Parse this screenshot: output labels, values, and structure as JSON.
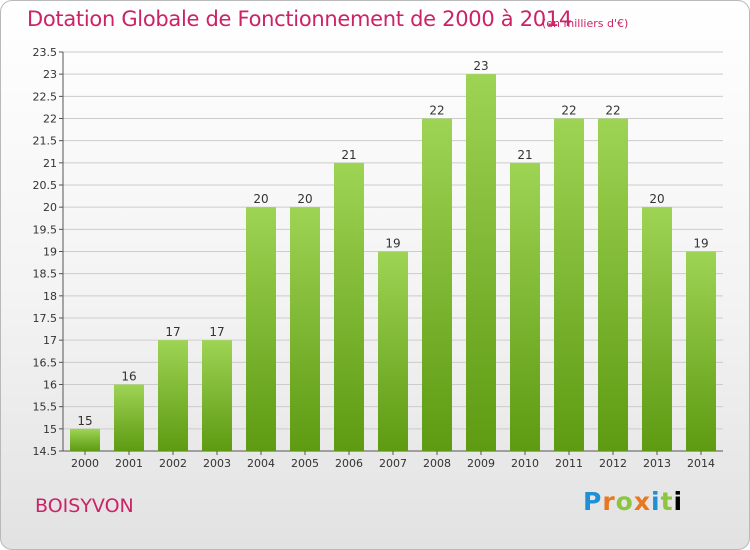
{
  "header": {
    "title": "Dotation Globale de Fonctionnement de 2000 à 2014",
    "unit_note": "(en milliers d'€)"
  },
  "footer": {
    "commune": "BOISYVON",
    "logo_text": "Proxiti"
  },
  "colors": {
    "accent": "#cc2266",
    "bar_top": "#9ed454",
    "bar_bottom": "#5e9a12",
    "grid": "#cccccc"
  },
  "chart_data": {
    "type": "bar",
    "title": "Dotation Globale de Fonctionnement de 2000 à 2014",
    "subtitle": "(en milliers d'€)",
    "xlabel": "",
    "ylabel": "",
    "categories": [
      "2000",
      "2001",
      "2002",
      "2003",
      "2004",
      "2005",
      "2006",
      "2007",
      "2008",
      "2009",
      "2010",
      "2011",
      "2012",
      "2013",
      "2014"
    ],
    "values": [
      15,
      16,
      17,
      17,
      20,
      20,
      21,
      19,
      22,
      23,
      21,
      22,
      22,
      20,
      19
    ],
    "data_labels": [
      "15",
      "16",
      "17",
      "17",
      "20",
      "20",
      "21",
      "19",
      "22",
      "23",
      "21",
      "22",
      "22",
      "20",
      "19"
    ],
    "ylim": [
      14.5,
      23.5
    ],
    "yticks": [
      "14.5",
      "15",
      "15.5",
      "16",
      "16.5",
      "17",
      "17.5",
      "18",
      "18.5",
      "19",
      "19.5",
      "20",
      "20.5",
      "21",
      "21.5",
      "22",
      "22.5",
      "23",
      "23.5"
    ],
    "grid": true,
    "legend": "none"
  }
}
